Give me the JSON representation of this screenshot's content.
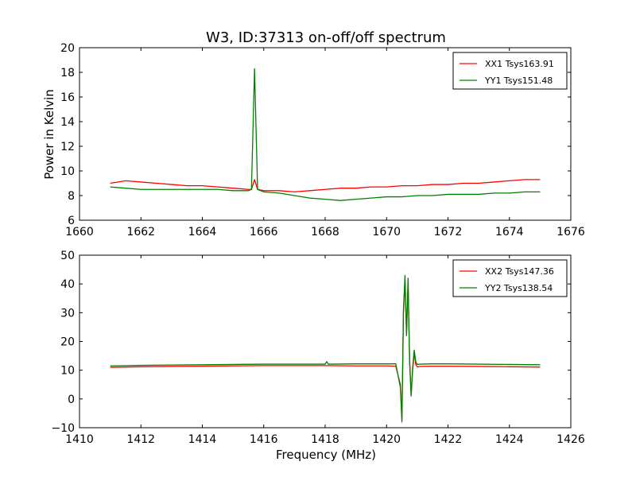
{
  "figure": {
    "title": "W3, ID:37313 on-off/off spectrum",
    "ylabel": "Power in Kelvin",
    "xlabel": "Frequency (MHz)"
  },
  "chart_data": [
    {
      "type": "line",
      "title": "W3, ID:37313 on-off/off spectrum",
      "xlabel": "",
      "ylabel": "Power in Kelvin",
      "xlim": [
        1660,
        1676
      ],
      "ylim": [
        6,
        20
      ],
      "xticks": [
        1660,
        1662,
        1664,
        1666,
        1668,
        1670,
        1672,
        1674,
        1676
      ],
      "yticks": [
        6,
        8,
        10,
        12,
        14,
        16,
        18,
        20
      ],
      "grid": false,
      "legend_position": "top-right",
      "series": [
        {
          "name": "XX1 Tsys163.91",
          "color": "#ff0000",
          "x": [
            1661.0,
            1661.5,
            1662.0,
            1662.5,
            1663.0,
            1663.5,
            1664.0,
            1664.5,
            1665.0,
            1665.5,
            1665.6,
            1665.7,
            1665.8,
            1666.0,
            1666.5,
            1667.0,
            1667.5,
            1668.0,
            1668.5,
            1669.0,
            1669.5,
            1670.0,
            1670.5,
            1671.0,
            1671.5,
            1672.0,
            1672.5,
            1673.0,
            1673.5,
            1674.0,
            1674.5,
            1675.0
          ],
          "y": [
            9.0,
            9.2,
            9.1,
            9.0,
            8.9,
            8.8,
            8.8,
            8.7,
            8.6,
            8.5,
            8.5,
            9.3,
            8.5,
            8.4,
            8.4,
            8.3,
            8.4,
            8.5,
            8.6,
            8.6,
            8.7,
            8.7,
            8.8,
            8.8,
            8.9,
            8.9,
            9.0,
            9.0,
            9.1,
            9.2,
            9.3,
            9.3
          ]
        },
        {
          "name": "YY1 Tsys151.48",
          "color": "#008000",
          "x": [
            1661.0,
            1661.5,
            1662.0,
            1662.5,
            1663.0,
            1663.5,
            1664.0,
            1664.5,
            1665.0,
            1665.5,
            1665.6,
            1665.7,
            1665.8,
            1666.0,
            1666.5,
            1667.0,
            1667.5,
            1668.0,
            1668.5,
            1669.0,
            1669.5,
            1670.0,
            1670.5,
            1671.0,
            1671.5,
            1672.0,
            1672.5,
            1673.0,
            1673.5,
            1674.0,
            1674.5,
            1675.0
          ],
          "y": [
            8.7,
            8.6,
            8.5,
            8.5,
            8.5,
            8.5,
            8.5,
            8.5,
            8.4,
            8.4,
            8.5,
            18.3,
            8.5,
            8.3,
            8.2,
            8.0,
            7.8,
            7.7,
            7.6,
            7.7,
            7.8,
            7.9,
            7.9,
            8.0,
            8.0,
            8.1,
            8.1,
            8.1,
            8.2,
            8.2,
            8.3,
            8.3
          ]
        }
      ]
    },
    {
      "type": "line",
      "title": "",
      "xlabel": "Frequency (MHz)",
      "ylabel": "",
      "xlim": [
        1410,
        1426
      ],
      "ylim": [
        -10,
        50
      ],
      "xticks": [
        1410,
        1412,
        1414,
        1416,
        1418,
        1420,
        1422,
        1424,
        1426
      ],
      "yticks": [
        -10,
        0,
        10,
        20,
        30,
        40,
        50
      ],
      "grid": false,
      "legend_position": "top-right",
      "series": [
        {
          "name": "XX2 Tsys147.36",
          "color": "#ff0000",
          "x": [
            1411.0,
            1412.0,
            1413.0,
            1414.0,
            1415.0,
            1416.0,
            1417.0,
            1418.0,
            1419.0,
            1420.0,
            1420.3,
            1420.45,
            1420.5,
            1420.55,
            1420.6,
            1420.65,
            1420.7,
            1420.75,
            1420.8,
            1420.85,
            1420.9,
            1420.95,
            1421.0,
            1421.1,
            1421.5,
            1422.0,
            1423.0,
            1424.0,
            1425.0
          ],
          "y": [
            11.0,
            11.2,
            11.3,
            11.4,
            11.5,
            11.6,
            11.6,
            11.6,
            11.5,
            11.5,
            11.4,
            5.0,
            -7.0,
            30.0,
            41.0,
            23.0,
            40.0,
            14.0,
            1.5,
            10.0,
            16.0,
            12.0,
            11.2,
            11.3,
            11.4,
            11.4,
            11.3,
            11.2,
            11.1
          ]
        },
        {
          "name": "YY2 Tsys138.54",
          "color": "#008000",
          "x": [
            1411.0,
            1412.0,
            1413.0,
            1414.0,
            1415.0,
            1416.0,
            1417.0,
            1418.0,
            1418.05,
            1418.1,
            1419.0,
            1420.0,
            1420.3,
            1420.45,
            1420.5,
            1420.55,
            1420.6,
            1420.65,
            1420.7,
            1420.75,
            1420.8,
            1420.85,
            1420.9,
            1420.95,
            1421.0,
            1421.1,
            1421.5,
            1422.0,
            1423.0,
            1424.0,
            1425.0
          ],
          "y": [
            11.5,
            11.7,
            11.8,
            11.9,
            12.0,
            12.1,
            12.1,
            12.1,
            13.0,
            12.1,
            12.2,
            12.2,
            12.2,
            4.0,
            -8.0,
            31.0,
            43.0,
            22.0,
            42.0,
            13.0,
            1.0,
            11.0,
            17.0,
            13.0,
            12.0,
            12.1,
            12.2,
            12.2,
            12.1,
            12.0,
            11.9
          ]
        }
      ]
    }
  ]
}
